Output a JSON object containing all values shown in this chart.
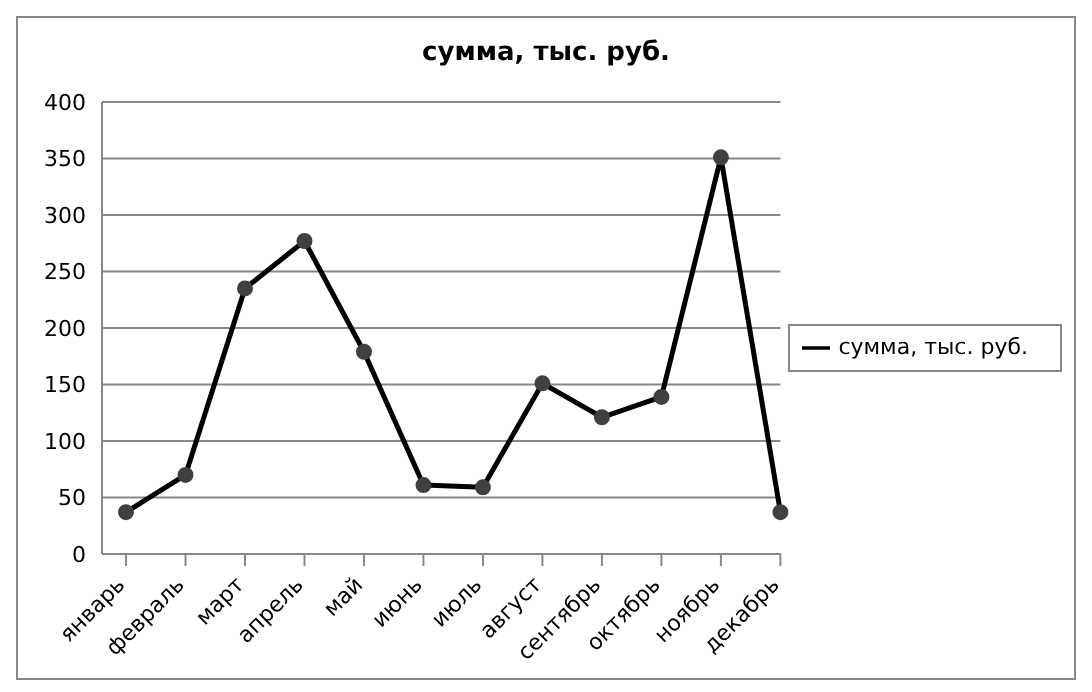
{
  "chart_data": {
    "type": "line",
    "title": "сумма, тыс. руб.",
    "categories": [
      "январь",
      "февраль",
      "март",
      "апрель",
      "май",
      "июнь",
      "июль",
      "август",
      "сентябрь",
      "октябрь",
      "ноябрь",
      "декабрь"
    ],
    "series": [
      {
        "name": "сумма, тыс. руб.",
        "color": "#000000",
        "values": [
          37,
          70,
          235,
          277,
          179,
          61,
          59,
          151,
          121,
          139,
          351,
          37
        ]
      }
    ],
    "ylim": [
      0,
      400
    ],
    "yticks": [
      0,
      50,
      100,
      150,
      200,
      250,
      300,
      350,
      400
    ],
    "grid": "y",
    "legend": "right",
    "marker": "circle",
    "line_style": "solid"
  }
}
